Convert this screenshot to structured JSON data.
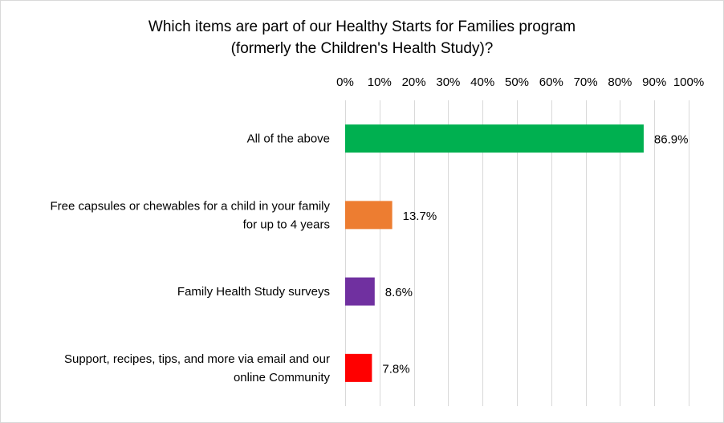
{
  "chart_data": {
    "type": "bar",
    "orientation": "horizontal",
    "title": [
      "Which items are part of our Healthy Starts for Families program",
      "(formerly the Children's Health Study)?"
    ],
    "categories": [
      [
        "All of the above"
      ],
      [
        "Free capsules or chewables for a child in your family",
        "for up to 4 years"
      ],
      [
        "Family Health Study surveys"
      ],
      [
        "Support, recipes, tips, and more via email and our",
        "online Community"
      ]
    ],
    "values": [
      86.9,
      13.7,
      8.6,
      7.8
    ],
    "data_labels": [
      "86.9%",
      "13.7%",
      "8.6%",
      "7.8%"
    ],
    "colors": [
      "#00b050",
      "#ed7d31",
      "#7030a0",
      "#ff0000"
    ],
    "x_axis": {
      "position": "top",
      "range": [
        0,
        100
      ],
      "ticks": [
        0,
        10,
        20,
        30,
        40,
        50,
        60,
        70,
        80,
        90,
        100
      ],
      "tick_labels": [
        "0%",
        "10%",
        "20%",
        "30%",
        "40%",
        "50%",
        "60%",
        "70%",
        "80%",
        "90%",
        "100%"
      ]
    },
    "grid": true,
    "legend": "none"
  }
}
